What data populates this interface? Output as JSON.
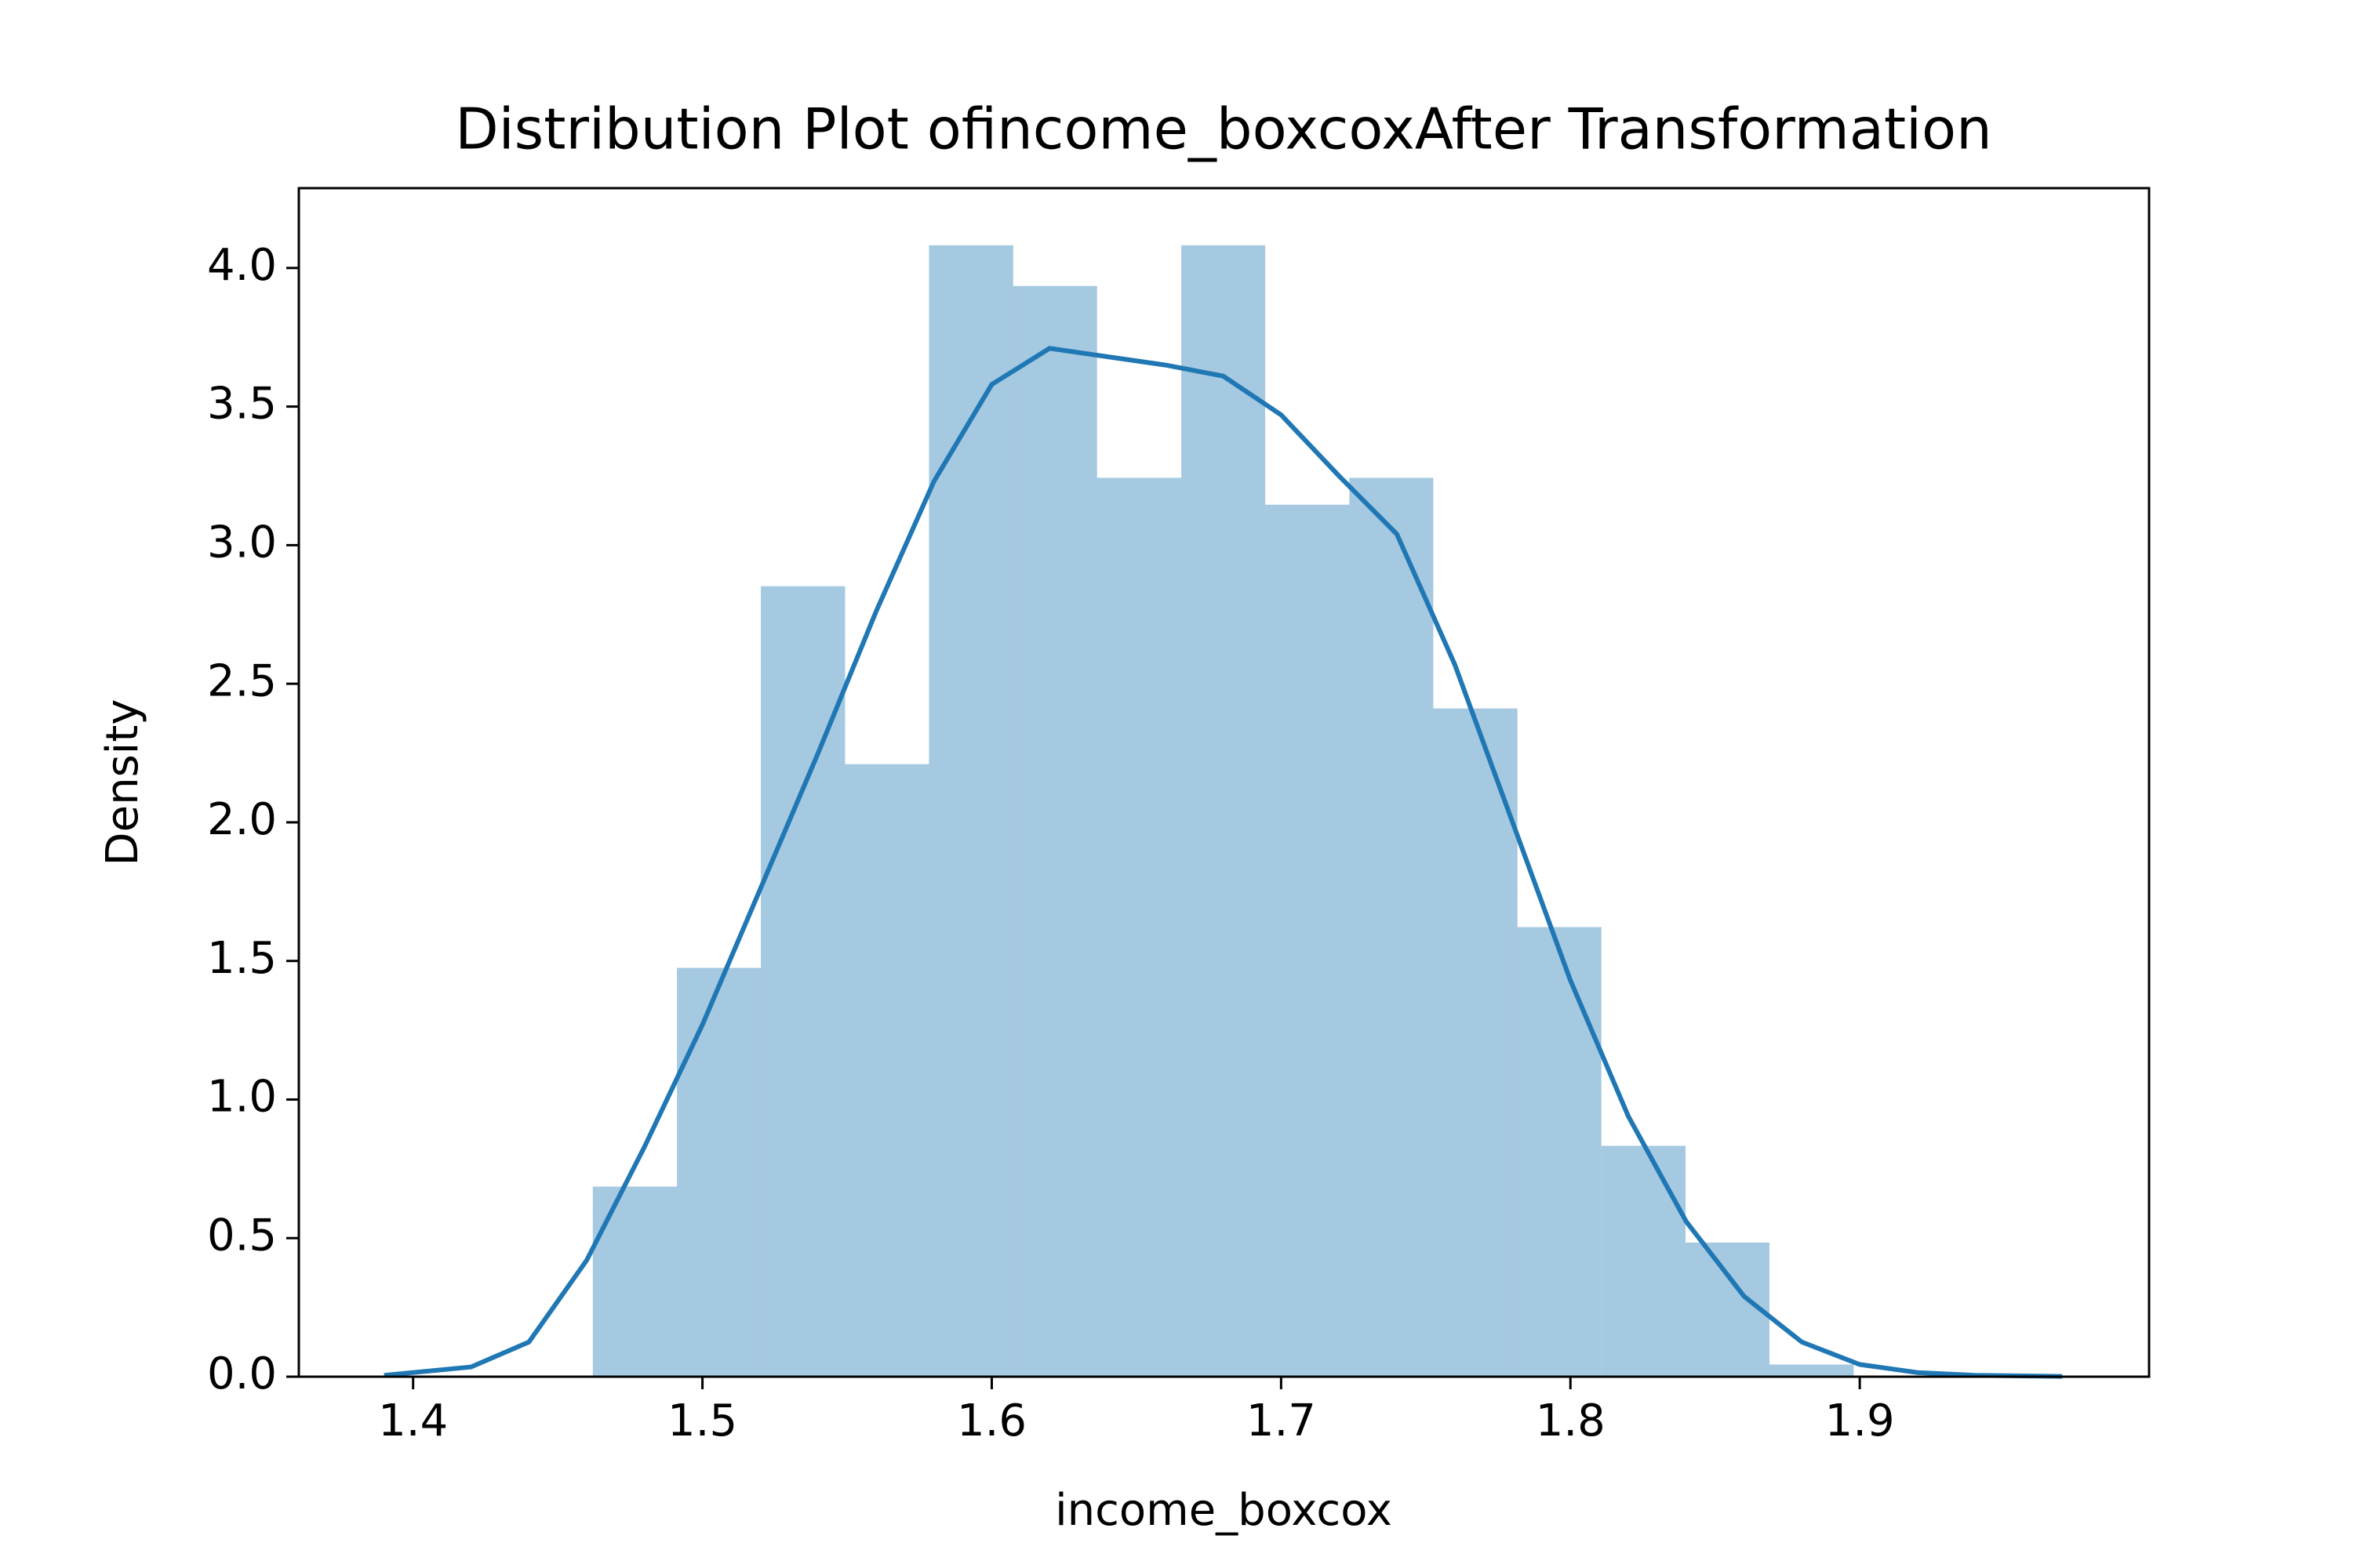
{
  "chart_data": {
    "type": "histogram",
    "title": "Distribution Plot ofincome_boxcoxAfter Transformation",
    "x_label": "income_boxcox",
    "y_label": "Density",
    "bins": [
      1.4621,
      1.4912,
      1.5202,
      1.5493,
      1.5783,
      1.6074,
      1.6364,
      1.6655,
      1.6945,
      1.7236,
      1.7526,
      1.7817,
      1.8107,
      1.8398,
      1.8688,
      1.8979
    ],
    "values": [
      0.686,
      1.475,
      2.852,
      2.21,
      4.082,
      3.935,
      3.243,
      4.082,
      3.146,
      3.243,
      2.411,
      1.622,
      0.833,
      0.484,
      0.044
    ],
    "color": "#1f77b4",
    "bar_alpha": 0.4,
    "kde": {
      "color": "#1f77b4",
      "x": [
        1.39,
        1.42,
        1.44,
        1.46,
        1.48,
        1.5,
        1.52,
        1.54,
        1.56,
        1.58,
        1.6,
        1.62,
        1.64,
        1.66,
        1.68,
        1.7,
        1.72,
        1.74,
        1.76,
        1.78,
        1.8,
        1.82,
        1.84,
        1.86,
        1.88,
        1.9,
        1.92,
        1.94,
        1.97
      ],
      "y": [
        0.005,
        0.035,
        0.125,
        0.42,
        0.83,
        1.27,
        1.76,
        2.25,
        2.76,
        3.23,
        3.58,
        3.71,
        3.68,
        3.65,
        3.61,
        3.47,
        3.25,
        3.04,
        2.57,
        2.0,
        1.43,
        0.94,
        0.56,
        0.29,
        0.125,
        0.044,
        0.015,
        0.005,
        0.001
      ]
    },
    "xlim": [
      1.3605,
      2.0
    ],
    "ylim": [
      0,
      4.288
    ],
    "xticks": [
      1.4,
      1.5,
      1.6,
      1.7,
      1.8,
      1.9
    ],
    "yticks": [
      {
        "value": 0,
        "label": "0.0"
      },
      0.5,
      {
        "value": 1,
        "label": "1.0"
      },
      1.5,
      {
        "value": 2,
        "label": "2.0"
      },
      2.5,
      {
        "value": 3,
        "label": "3.0"
      },
      3.5,
      {
        "value": 4,
        "label": "4.0"
      }
    ],
    "grid": false
  }
}
